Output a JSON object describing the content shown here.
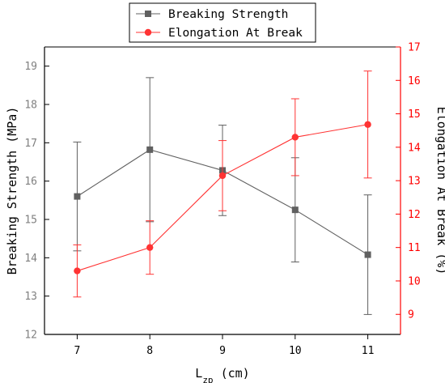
{
  "chart_data": {
    "type": "line",
    "x": [
      7,
      8,
      9,
      10,
      11
    ],
    "xlabel_main": "L",
    "xlabel_sub": "zp",
    "xlabel_unit": " (cm)",
    "xlim": [
      6.55,
      11.45
    ],
    "x_ticks": [
      7,
      8,
      9,
      10,
      11
    ],
    "y_left": {
      "label": "Breaking Strength (MPa)",
      "lim": [
        12,
        19.5
      ],
      "ticks": [
        12,
        13,
        14,
        15,
        16,
        17,
        18,
        19
      ],
      "color": "#808080"
    },
    "y_right": {
      "label": "Elongation At Break (%)",
      "lim": [
        8.4,
        17
      ],
      "ticks": [
        9,
        10,
        11,
        12,
        13,
        14,
        15,
        16,
        17
      ],
      "color": "#ff0000"
    },
    "series": [
      {
        "name": "Breaking Strength",
        "axis": "left",
        "color": "#606060",
        "marker": "square",
        "values": [
          15.6,
          16.82,
          16.28,
          15.25,
          14.08
        ],
        "errors": [
          1.42,
          1.88,
          1.18,
          1.36,
          1.56
        ]
      },
      {
        "name": "Elongation At Break",
        "axis": "right",
        "color": "#ff3333",
        "marker": "circle",
        "values": [
          10.3,
          11.0,
          13.15,
          14.3,
          14.68
        ],
        "errors": [
          0.78,
          0.8,
          1.05,
          1.15,
          1.6
        ]
      }
    ],
    "legend_position": "top-center",
    "grid": false
  }
}
